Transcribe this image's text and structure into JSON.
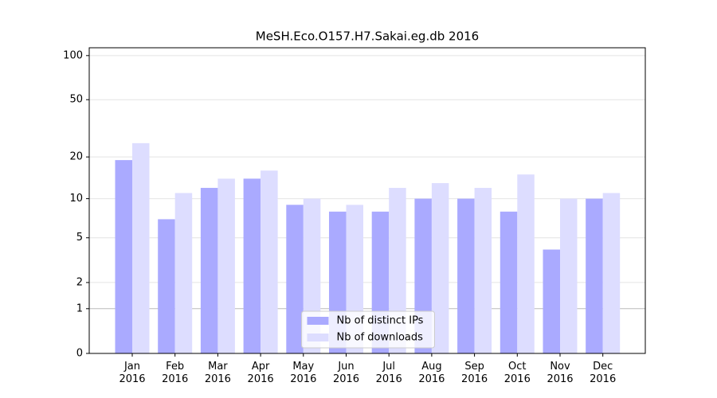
{
  "chart_data": {
    "type": "bar",
    "title": "MeSH.Eco.O157.H7.Sakai.eg.db 2016",
    "categories": [
      "Jan\n2016",
      "Feb\n2016",
      "Mar\n2016",
      "Apr\n2016",
      "May\n2016",
      "Jun\n2016",
      "Jul\n2016",
      "Aug\n2016",
      "Sep\n2016",
      "Oct\n2016",
      "Nov\n2016",
      "Dec\n2016"
    ],
    "series": [
      {
        "name": "Nb of distinct IPs",
        "color": "#aaaaff",
        "values": [
          19,
          7,
          12,
          14,
          9,
          8,
          8,
          10,
          10,
          8,
          4,
          10
        ]
      },
      {
        "name": "Nb of downloads",
        "color": "#ddddff",
        "values": [
          25,
          11,
          14,
          16,
          10,
          9,
          12,
          13,
          12,
          15,
          10,
          11
        ]
      }
    ],
    "yscale": "log1p",
    "ylim": [
      0,
      113
    ],
    "yticks": [
      0,
      1,
      2,
      5,
      10,
      20,
      50,
      100
    ],
    "grid": true,
    "legend": "lower center"
  }
}
